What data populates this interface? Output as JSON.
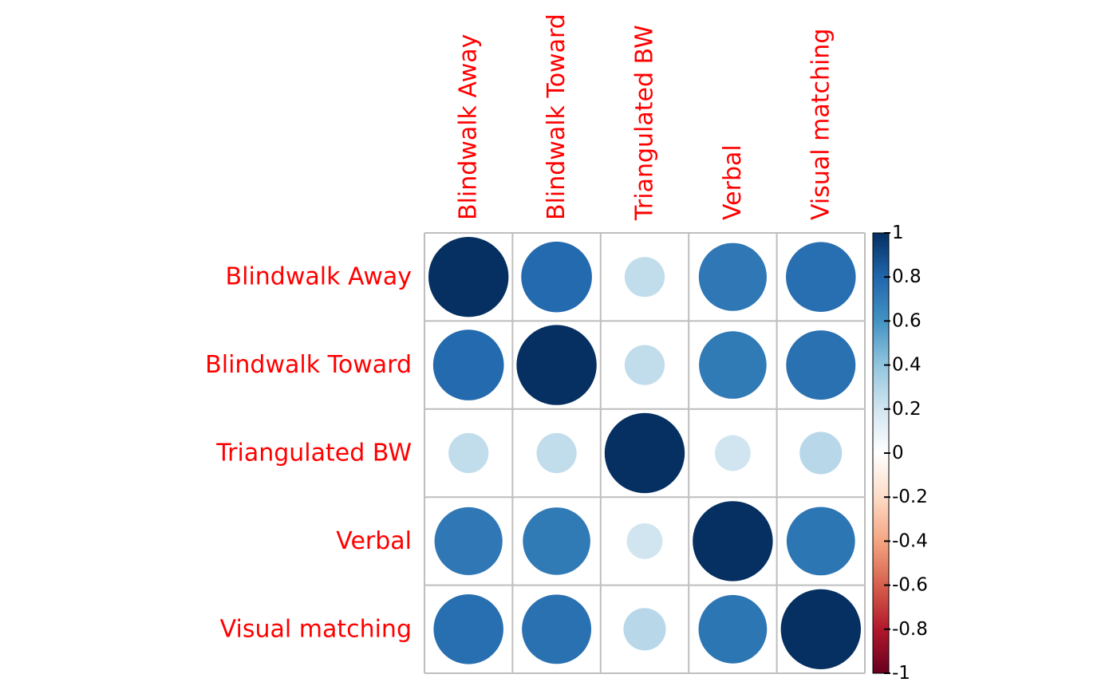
{
  "chart_data": {
    "type": "heatmap",
    "subtype": "correlation-circle-matrix",
    "variables": [
      "Blindwalk Away",
      "Blindwalk Toward",
      "Triangulated BW",
      "Verbal",
      "Visual matching"
    ],
    "matrix": [
      [
        1.0,
        0.78,
        0.25,
        0.72,
        0.76
      ],
      [
        0.78,
        1.0,
        0.25,
        0.71,
        0.75
      ],
      [
        0.25,
        0.25,
        1.0,
        0.2,
        0.28
      ],
      [
        0.72,
        0.71,
        0.2,
        1.0,
        0.73
      ],
      [
        0.76,
        0.75,
        0.28,
        0.73,
        1.0
      ]
    ],
    "colorbar": {
      "range": [
        -1,
        1
      ],
      "ticks": [
        1,
        0.8,
        0.6,
        0.4,
        0.2,
        0,
        -0.2,
        -0.4,
        -0.6,
        -0.8,
        -1
      ],
      "tick_labels": [
        "1",
        "0.8",
        "0.6",
        "0.4",
        "0.2",
        "0",
        "-0.2",
        "-0.4",
        "-0.6",
        "-0.8",
        "-1"
      ],
      "placement": "right"
    },
    "label_color": "#ff0000",
    "grid": true,
    "grid_color": "#bebebe",
    "palette": [
      "#67001F",
      "#B2182B",
      "#D6604D",
      "#F4A582",
      "#FDDBC7",
      "#FFFFFF",
      "#D1E5F0",
      "#92C5DE",
      "#4393C3",
      "#2166AC",
      "#053061"
    ]
  }
}
